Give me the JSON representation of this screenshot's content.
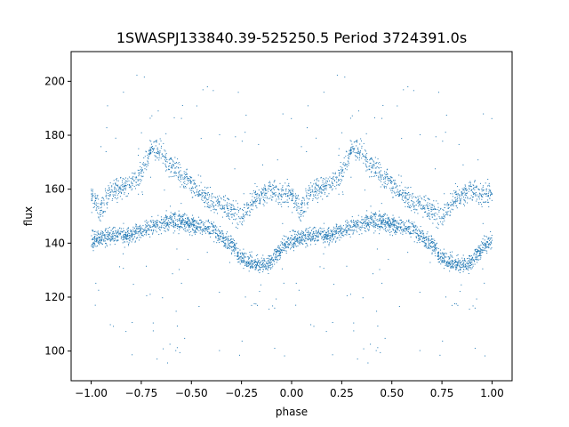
{
  "chart_data": {
    "type": "scatter",
    "title": "1SWASPJ133840.39-525250.5 Period 3724391.0s",
    "xlabel": "phase",
    "ylabel": "flux",
    "xlim": [
      -1.1,
      1.1
    ],
    "ylim": [
      89,
      211
    ],
    "xticks": [
      -1.0,
      -0.75,
      -0.5,
      -0.25,
      0.0,
      0.25,
      0.5,
      0.75,
      1.0
    ],
    "xtick_labels": [
      "−1.00",
      "−0.75",
      "−0.50",
      "−0.25",
      "0.00",
      "0.25",
      "0.50",
      "0.75",
      "1.00"
    ],
    "yticks": [
      100,
      120,
      140,
      160,
      180,
      200
    ],
    "ytick_labels": [
      "100",
      "120",
      "140",
      "160",
      "180",
      "200"
    ],
    "grid": false,
    "point_color": "#1f77b4",
    "profile": {
      "description_of_trend": "flux vs phase, repeated for phase -1..0 and 0..1",
      "phase": [
        0.0,
        0.05,
        0.1,
        0.15,
        0.2,
        0.25,
        0.3,
        0.35,
        0.4,
        0.45,
        0.5,
        0.55,
        0.6,
        0.65,
        0.7,
        0.75,
        0.8,
        0.85,
        0.9,
        0.95,
        1.0
      ],
      "flux_lower": [
        141,
        142,
        143,
        143,
        143,
        145,
        146,
        147,
        148,
        148,
        147,
        146,
        145,
        142,
        140,
        134,
        133,
        132,
        133,
        138,
        141
      ],
      "flux_upper": [
        158,
        152,
        160,
        160,
        162,
        165,
        175,
        174,
        168,
        165,
        162,
        158,
        156,
        154,
        152,
        150,
        155,
        158,
        160,
        158,
        158
      ]
    }
  }
}
